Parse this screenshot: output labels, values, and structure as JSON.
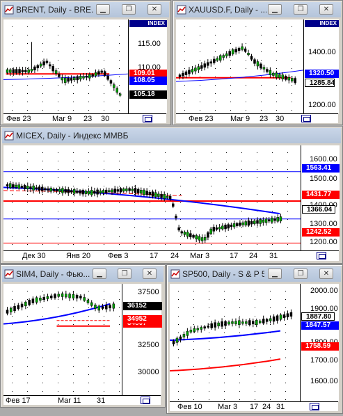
{
  "colors": {
    "up": "#00a000",
    "down": "#000000",
    "red_line": "#ff0000",
    "blue_line": "#0000ff",
    "price_tag_black": "#000000",
    "tag_red": "#ff0000",
    "tag_blue": "#0000ff",
    "index_bar": "#00008b"
  },
  "icons": {
    "window": "chart-window-icon",
    "minimize": "minimize-icon",
    "restore": "restore-icon",
    "close": "close-icon"
  },
  "windows": [
    {
      "title": "BRENT, Daily - BRE...",
      "index_label": "INDEX",
      "y_ticks": [
        "115.00",
        "110.00"
      ],
      "price_tags": [
        {
          "text": "109.01",
          "kind": "red"
        },
        {
          "text": "108.05",
          "kind": "blue"
        },
        {
          "text": "105.18",
          "kind": "black"
        }
      ],
      "x_ticks": [
        "Фев 23",
        "Mar 9",
        "23",
        "30"
      ]
    },
    {
      "title": "XAUUSD.F, Daily - ...",
      "index_label": "INDEX",
      "y_ticks": [
        "1400.00",
        "1200.00"
      ],
      "price_tags": [
        {
          "text": "1320.50",
          "kind": "blue"
        },
        {
          "text": "1285.84",
          "kind": "black"
        }
      ],
      "x_ticks": [
        "Фев 23",
        "Mar 9",
        "23",
        "30"
      ]
    },
    {
      "title": "MICEX, Daily - Индекс ММВБ",
      "y_ticks": [
        "1600.00",
        "1500.00",
        "1400.00",
        "1300.00",
        "1200.00"
      ],
      "price_tags": [
        {
          "text": "1563.41",
          "kind": "blue"
        },
        {
          "text": "1431.77",
          "kind": "red"
        },
        {
          "text": "1366.04",
          "kind": "black"
        },
        {
          "text": "1242.52",
          "kind": "red"
        }
      ],
      "x_ticks": [
        "Дек 30",
        "Янв 20",
        "Фев 3",
        "17",
        "24",
        "Mar 3",
        "17",
        "24",
        "31"
      ]
    },
    {
      "title": "SIM4, Daily - Фью...",
      "y_ticks": [
        "37500",
        "32500",
        "30000"
      ],
      "price_tags": [
        {
          "text": "36152",
          "kind": "black"
        },
        {
          "text": "34952",
          "kind": "red"
        },
        {
          "text": "34807",
          "kind": "red"
        }
      ],
      "x_ticks": [
        "Фев 17",
        "Mar 11",
        "31"
      ]
    },
    {
      "title": "SP500, Daily - S & P 5...",
      "y_ticks": [
        "2000.00",
        "1900.00",
        "1800.00",
        "1700.00",
        "1600.00"
      ],
      "price_tags": [
        {
          "text": "1887.80",
          "kind": "black"
        },
        {
          "text": "1847.57",
          "kind": "blue"
        },
        {
          "text": "1758.59",
          "kind": "red"
        }
      ],
      "x_ticks": [
        "Фев 10",
        "Mar 3",
        "17",
        "24",
        "31"
      ]
    }
  ]
}
